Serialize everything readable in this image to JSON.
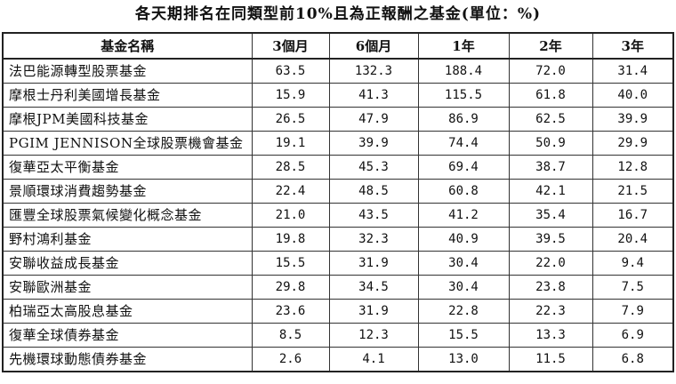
{
  "title": "各天期排名在同類型前10%且為正報酬之基金(單位：%)",
  "headers": [
    "基金名稱",
    "3個月",
    "6個月",
    "1年",
    "2年",
    "3年"
  ],
  "rows": [
    {
      "name": "法巴能源轉型股票基金",
      "values": [
        "63.5",
        "132.3",
        "188.4",
        "72.0",
        "31.4"
      ]
    },
    {
      "name": "摩根士丹利美國增長基金",
      "values": [
        "15.9",
        "41.3",
        "115.5",
        "61.8",
        "40.0"
      ]
    },
    {
      "name": "摩根JPM美國科技基金",
      "values": [
        "26.5",
        "47.9",
        "86.9",
        "62.5",
        "39.9"
      ]
    },
    {
      "name": "PGIM JENNISON全球股票機會基金",
      "values": [
        "19.1",
        "39.9",
        "74.4",
        "50.9",
        "29.9"
      ]
    },
    {
      "name": "復華亞太平衡基金",
      "values": [
        "28.5",
        "45.3",
        "69.4",
        "38.7",
        "12.8"
      ]
    },
    {
      "name": "景順環球消費趨勢基金",
      "values": [
        "22.4",
        "48.5",
        "60.8",
        "42.1",
        "21.5"
      ]
    },
    {
      "name": "匯豐全球股票氣候變化概念基金",
      "values": [
        "21.0",
        "43.5",
        "41.2",
        "35.4",
        "16.7"
      ]
    },
    {
      "name": "野村鴻利基金",
      "values": [
        "19.8",
        "32.3",
        "40.9",
        "39.5",
        "20.4"
      ]
    },
    {
      "name": "安聯收益成長基金",
      "values": [
        "15.5",
        "31.9",
        "30.4",
        "22.0",
        "9.4"
      ]
    },
    {
      "name": "安聯歐洲基金",
      "values": [
        "29.8",
        "34.5",
        "30.4",
        "23.8",
        "7.5"
      ]
    },
    {
      "name": "柏瑞亞太高股息基金",
      "values": [
        "23.6",
        "31.9",
        "22.8",
        "22.3",
        "7.9"
      ]
    },
    {
      "name": "復華全球債券基金",
      "values": [
        "8.5",
        "12.3",
        "15.5",
        "13.3",
        "6.9"
      ]
    },
    {
      "name": "先機環球動態債券基金",
      "values": [
        "2.6",
        "4.1",
        "13.0",
        "11.5",
        "6.8"
      ]
    }
  ]
}
